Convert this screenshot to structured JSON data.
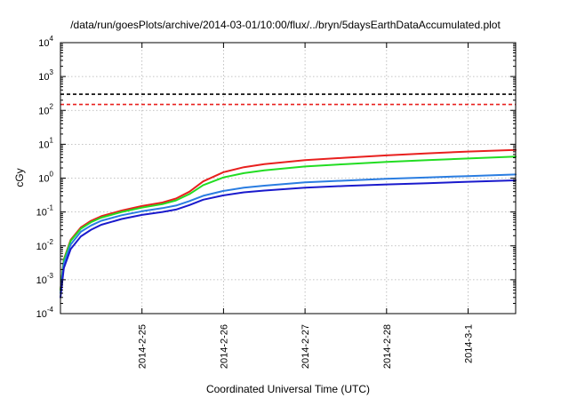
{
  "chart_data": {
    "type": "line",
    "title": "/data/run/goesPlots/archive/2014-03-01/10:00/flux/../bryn/5daysEarthDataAccumulated.plot",
    "xlabel": "Coordinated Universal Time (UTC)",
    "ylabel": "cGy",
    "y_scale": "log",
    "grid": true,
    "xlim": [
      "2014-02-24T00:00",
      "2014-03-01T14:00"
    ],
    "ylim": [
      0.0001,
      10000
    ],
    "x_ticks": [
      {
        "x": "2014-02-25T00:00",
        "label": "2014-2-25"
      },
      {
        "x": "2014-02-26T00:00",
        "label": "2014-2-26"
      },
      {
        "x": "2014-02-27T00:00",
        "label": "2014-2-27"
      },
      {
        "x": "2014-02-28T00:00",
        "label": "2014-2-28"
      },
      {
        "x": "2014-03-01T00:00",
        "label": "2014-3-1"
      }
    ],
    "y_ticks": [
      {
        "y": 0.0001,
        "base": "10",
        "exp": "-4"
      },
      {
        "y": 0.001,
        "base": "10",
        "exp": "-3"
      },
      {
        "y": 0.01,
        "base": "10",
        "exp": "-2"
      },
      {
        "y": 0.1,
        "base": "10",
        "exp": "-1"
      },
      {
        "y": 1,
        "base": "10",
        "exp": "0"
      },
      {
        "y": 10,
        "base": "10",
        "exp": "1"
      },
      {
        "y": 100,
        "base": "10",
        "exp": "2"
      },
      {
        "y": 1000,
        "base": "10",
        "exp": "3"
      },
      {
        "y": 10000,
        "base": "10",
        "exp": "4"
      }
    ],
    "thresholds": [
      {
        "y": 300,
        "color": "#000000"
      },
      {
        "y": 150,
        "color": "#e8201e"
      }
    ],
    "series": [
      {
        "color": "#e8201e",
        "points": [
          [
            "2014-02-24T00:00",
            0.0005
          ],
          [
            "2014-02-24T01:00",
            0.004
          ],
          [
            "2014-02-24T03:00",
            0.015
          ],
          [
            "2014-02-24T06:00",
            0.035
          ],
          [
            "2014-02-24T09:00",
            0.055
          ],
          [
            "2014-02-24T12:00",
            0.075
          ],
          [
            "2014-02-24T18:00",
            0.11
          ],
          [
            "2014-02-25T00:00",
            0.15
          ],
          [
            "2014-02-25T06:00",
            0.19
          ],
          [
            "2014-02-25T10:00",
            0.25
          ],
          [
            "2014-02-25T14:00",
            0.4
          ],
          [
            "2014-02-25T18:00",
            0.8
          ],
          [
            "2014-02-26T00:00",
            1.5
          ],
          [
            "2014-02-26T06:00",
            2.1
          ],
          [
            "2014-02-26T12:00",
            2.6
          ],
          [
            "2014-02-27T00:00",
            3.4
          ],
          [
            "2014-02-27T12:00",
            4.0
          ],
          [
            "2014-02-28T00:00",
            4.7
          ],
          [
            "2014-02-28T12:00",
            5.4
          ],
          [
            "2014-03-01T00:00",
            6.1
          ],
          [
            "2014-03-01T14:00",
            6.8
          ]
        ]
      },
      {
        "color": "#22dd22",
        "points": [
          [
            "2014-02-24T00:00",
            0.0005
          ],
          [
            "2014-02-24T01:00",
            0.0038
          ],
          [
            "2014-02-24T03:00",
            0.014
          ],
          [
            "2014-02-24T06:00",
            0.032
          ],
          [
            "2014-02-24T09:00",
            0.05
          ],
          [
            "2014-02-24T12:00",
            0.068
          ],
          [
            "2014-02-24T18:00",
            0.1
          ],
          [
            "2014-02-25T00:00",
            0.135
          ],
          [
            "2014-02-25T06:00",
            0.17
          ],
          [
            "2014-02-25T10:00",
            0.22
          ],
          [
            "2014-02-25T14:00",
            0.34
          ],
          [
            "2014-02-25T18:00",
            0.62
          ],
          [
            "2014-02-26T00:00",
            1.05
          ],
          [
            "2014-02-26T06:00",
            1.4
          ],
          [
            "2014-02-26T12:00",
            1.7
          ],
          [
            "2014-02-27T00:00",
            2.2
          ],
          [
            "2014-02-27T12:00",
            2.6
          ],
          [
            "2014-02-28T00:00",
            3.0
          ],
          [
            "2014-02-28T12:00",
            3.4
          ],
          [
            "2014-03-01T00:00",
            3.8
          ],
          [
            "2014-03-01T14:00",
            4.3
          ]
        ]
      },
      {
        "color": "#2a7de1",
        "points": [
          [
            "2014-02-24T00:00",
            0.0004
          ],
          [
            "2014-02-24T01:00",
            0.003
          ],
          [
            "2014-02-24T03:00",
            0.011
          ],
          [
            "2014-02-24T06:00",
            0.026
          ],
          [
            "2014-02-24T09:00",
            0.04
          ],
          [
            "2014-02-24T12:00",
            0.055
          ],
          [
            "2014-02-24T18:00",
            0.08
          ],
          [
            "2014-02-25T00:00",
            0.105
          ],
          [
            "2014-02-25T06:00",
            0.13
          ],
          [
            "2014-02-25T10:00",
            0.155
          ],
          [
            "2014-02-25T14:00",
            0.21
          ],
          [
            "2014-02-25T18:00",
            0.3
          ],
          [
            "2014-02-26T00:00",
            0.42
          ],
          [
            "2014-02-26T06:00",
            0.52
          ],
          [
            "2014-02-26T12:00",
            0.6
          ],
          [
            "2014-02-27T00:00",
            0.75
          ],
          [
            "2014-02-27T12:00",
            0.85
          ],
          [
            "2014-02-28T00:00",
            0.95
          ],
          [
            "2014-02-28T12:00",
            1.05
          ],
          [
            "2014-03-01T00:00",
            1.15
          ],
          [
            "2014-03-01T14:00",
            1.28
          ]
        ]
      },
      {
        "color": "#1a1acc",
        "points": [
          [
            "2014-02-24T00:00",
            0.0003
          ],
          [
            "2014-02-24T01:00",
            0.0022
          ],
          [
            "2014-02-24T03:00",
            0.008
          ],
          [
            "2014-02-24T06:00",
            0.019
          ],
          [
            "2014-02-24T09:00",
            0.03
          ],
          [
            "2014-02-24T12:00",
            0.042
          ],
          [
            "2014-02-24T18:00",
            0.062
          ],
          [
            "2014-02-25T00:00",
            0.082
          ],
          [
            "2014-02-25T06:00",
            0.1
          ],
          [
            "2014-02-25T10:00",
            0.118
          ],
          [
            "2014-02-25T14:00",
            0.16
          ],
          [
            "2014-02-25T18:00",
            0.23
          ],
          [
            "2014-02-26T00:00",
            0.31
          ],
          [
            "2014-02-26T06:00",
            0.38
          ],
          [
            "2014-02-26T12:00",
            0.43
          ],
          [
            "2014-02-27T00:00",
            0.52
          ],
          [
            "2014-02-27T12:00",
            0.59
          ],
          [
            "2014-02-28T00:00",
            0.65
          ],
          [
            "2014-02-28T12:00",
            0.71
          ],
          [
            "2014-03-01T00:00",
            0.78
          ],
          [
            "2014-03-01T14:00",
            0.86
          ]
        ]
      }
    ]
  }
}
